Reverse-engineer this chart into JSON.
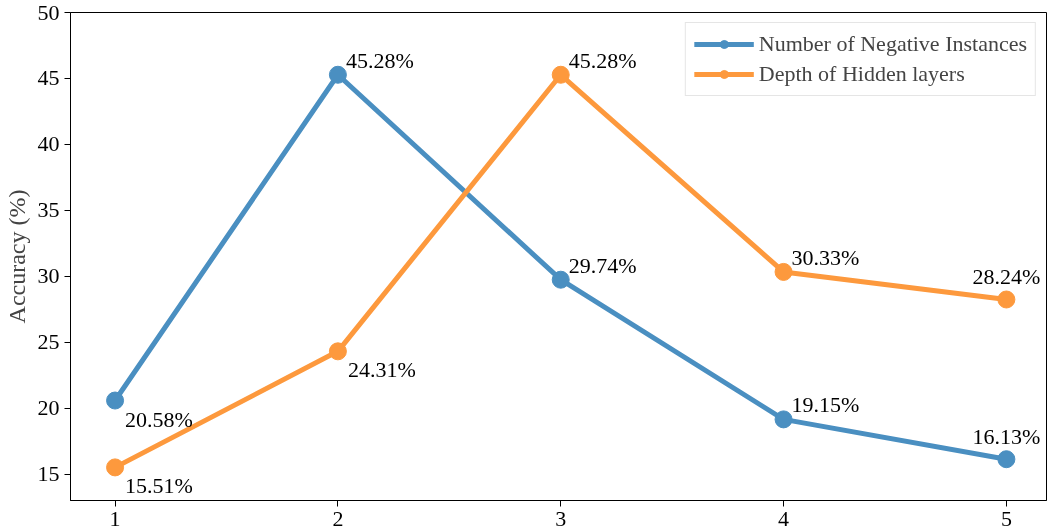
{
  "chart_data": {
    "type": "line",
    "ylabel": "Accuracy (%)",
    "x": [
      1,
      2,
      3,
      4,
      5
    ],
    "series": [
      {
        "name": "Number of Negative Instances",
        "color": "#4a8fc1",
        "values": [
          20.58,
          45.28,
          29.74,
          19.15,
          16.13
        ],
        "value_labels": [
          "20.58%",
          "45.28%",
          "29.74%",
          "19.15%",
          "16.13%"
        ]
      },
      {
        "name": "Depth of Hidden layers",
        "color": "#fd993d",
        "values": [
          15.51,
          24.31,
          45.28,
          30.33,
          28.24
        ],
        "value_labels": [
          "15.51%",
          "24.31%",
          "45.28%",
          "30.33%",
          "28.24%"
        ]
      }
    ],
    "xlim": [
      0.8,
      5.18
    ],
    "ylim": [
      13,
      50
    ],
    "xticks": [
      1,
      2,
      3,
      4,
      5
    ],
    "yticks": [
      15,
      20,
      25,
      30,
      35,
      40,
      45,
      50
    ],
    "grid": false,
    "legend": "top right",
    "marker": "circle",
    "line_style": "solid"
  }
}
